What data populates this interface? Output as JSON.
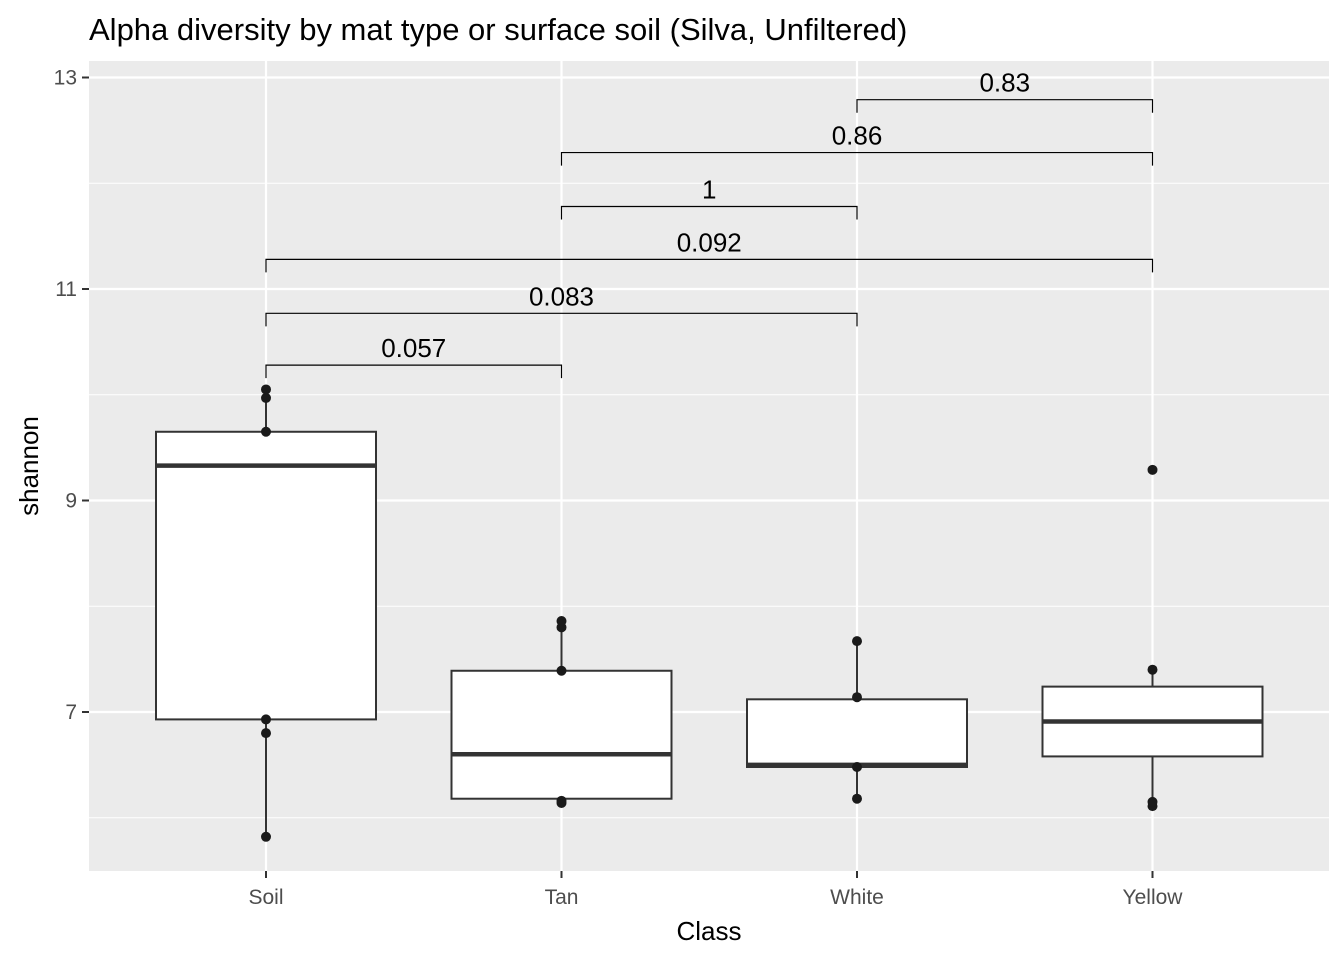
{
  "chart_data": {
    "type": "box",
    "title": "Alpha diversity by mat type or surface soil (Silva, Unfiltered)",
    "xlabel": "Class",
    "ylabel": "shannon",
    "categories": [
      "Soil",
      "Tan",
      "White",
      "Yellow"
    ],
    "ylim": [
      5.5,
      13.2
    ],
    "yticks": [
      7,
      9,
      11,
      13
    ],
    "grid": true,
    "boxes": [
      {
        "category": "Soil",
        "whisker_low": 5.82,
        "q1": 6.93,
        "median": 9.33,
        "q3": 9.65,
        "whisker_high": 10.05,
        "points": [
          5.82,
          6.8,
          6.93,
          9.65,
          9.97,
          10.05
        ]
      },
      {
        "category": "Tan",
        "whisker_low": 6.14,
        "q1": 6.18,
        "median": 6.6,
        "q3": 7.39,
        "whisker_high": 7.86,
        "points": [
          6.14,
          6.16,
          7.39,
          7.8,
          7.86
        ]
      },
      {
        "category": "White",
        "whisker_low": 6.18,
        "q1": 6.48,
        "median": 6.5,
        "q3": 7.12,
        "whisker_high": 7.67,
        "points": [
          6.18,
          6.48,
          7.14,
          7.67
        ]
      },
      {
        "category": "Yellow",
        "whisker_low": 6.11,
        "q1": 6.58,
        "median": 6.91,
        "q3": 7.24,
        "whisker_high": 7.4,
        "points": [
          6.11,
          6.15,
          7.4,
          9.29
        ]
      }
    ],
    "comparisons": [
      {
        "from": "Soil",
        "to": "Tan",
        "p": "0.057",
        "y": 10.28
      },
      {
        "from": "Soil",
        "to": "White",
        "p": "0.083",
        "y": 10.77
      },
      {
        "from": "Soil",
        "to": "Yellow",
        "p": "0.092",
        "y": 11.28
      },
      {
        "from": "Tan",
        "to": "White",
        "p": "1",
        "y": 11.78
      },
      {
        "from": "Tan",
        "to": "Yellow",
        "p": "0.86",
        "y": 12.29
      },
      {
        "from": "White",
        "to": "Yellow",
        "p": "0.83",
        "y": 12.79
      }
    ],
    "colors": {
      "panel": "#ebebeb",
      "grid": "#ffffff",
      "box_fill": "#ffffff",
      "box_line": "#333333",
      "point": "#1a1a1a"
    }
  }
}
